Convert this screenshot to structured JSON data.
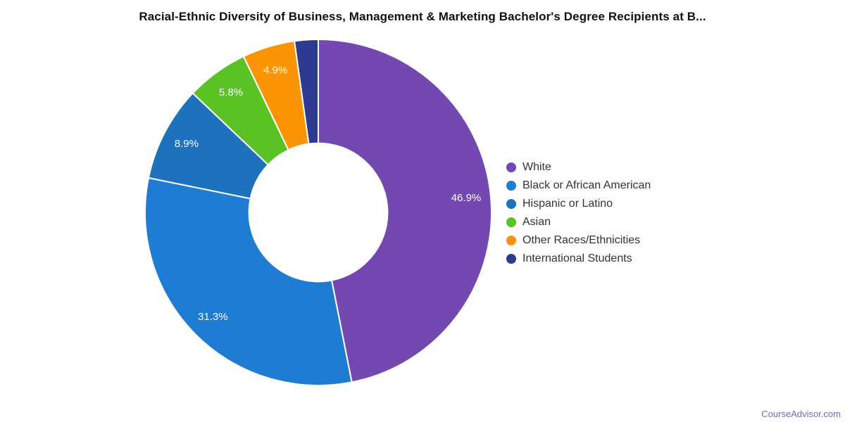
{
  "watermark": "CourseAdvisor.com",
  "chart_data": {
    "type": "pie",
    "subtype": "donut",
    "title": "Racial-Ethnic Diversity of Business, Management & Marketing Bachelor's Degree Recipients at B...",
    "slices": [
      {
        "label": "White",
        "value": 46.9,
        "percent_label": "46.9%",
        "color": "#7348b0"
      },
      {
        "label": "Black or African American",
        "value": 31.3,
        "percent_label": "31.3%",
        "color": "#1e7dd3"
      },
      {
        "label": "Hispanic or Latino",
        "value": 8.9,
        "percent_label": "8.9%",
        "color": "#1d71bd"
      },
      {
        "label": "Asian",
        "value": 5.8,
        "percent_label": "5.8%",
        "color": "#5bc226"
      },
      {
        "label": "Other Races/Ethnicities",
        "value": 4.9,
        "percent_label": "4.9%",
        "color": "#fb9403"
      },
      {
        "label": "International Students",
        "value": 2.2,
        "percent_label": "",
        "color": "#2d3a8f"
      }
    ],
    "start_angle_deg": 0,
    "direction": "clockwise",
    "inner_radius_ratio": 0.4,
    "slice_border_color": "#ffffff",
    "legend_position": "right",
    "labels_inside": true
  }
}
